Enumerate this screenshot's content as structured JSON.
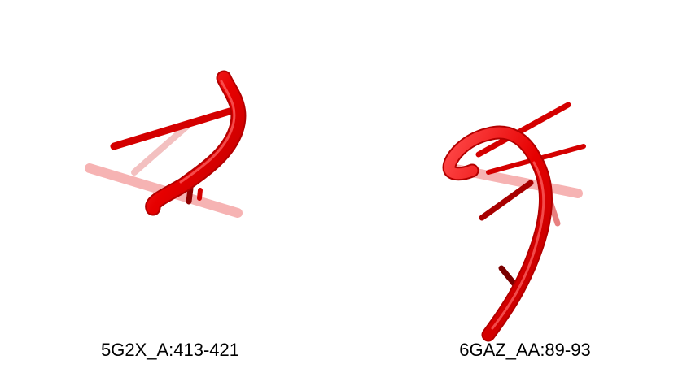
{
  "panels": [
    {
      "caption": "5G2X_A:413-421",
      "color": "#e60000"
    },
    {
      "caption": "6GAZ_AA:89-93",
      "color": "#e60000"
    }
  ],
  "colors": {
    "background": "#ffffff",
    "backbone": "#e60000",
    "backbone_dark": "#a00000",
    "ghost": "#f2a0a0"
  }
}
